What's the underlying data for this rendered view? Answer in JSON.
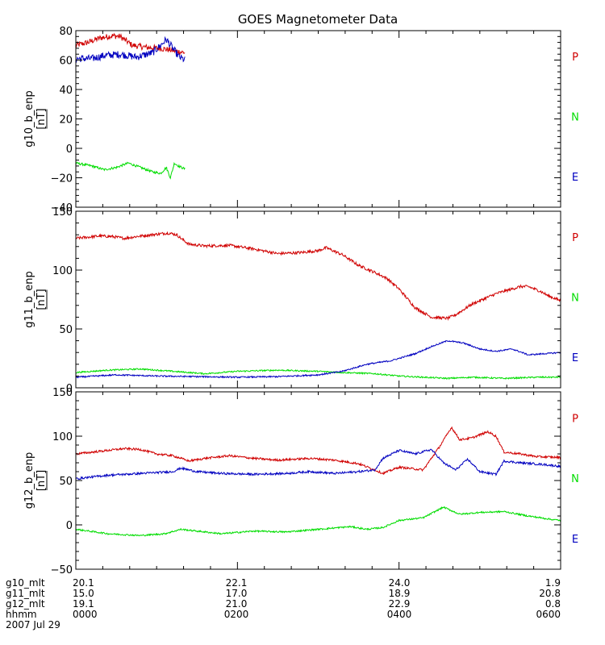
{
  "title": "GOES Magnetometer Data",
  "date_label": "2007 Jul 29",
  "colors": {
    "P": "#d00000",
    "N": "#00dd00",
    "E": "#0000c0",
    "axis": "#000000"
  },
  "legend_labels": [
    "P",
    "N",
    "E"
  ],
  "time_axis": {
    "xlim_hours": [
      0,
      6
    ],
    "tick_hours": [
      0,
      2,
      4,
      6
    ],
    "rows": [
      {
        "label": "g10_mlt",
        "values": [
          "20.1",
          "22.1",
          "24.0",
          "1.9"
        ]
      },
      {
        "label": "g11_mlt",
        "values": [
          "15.0",
          "17.0",
          "18.9",
          "20.8"
        ]
      },
      {
        "label": "g12_mlt",
        "values": [
          "19.1",
          "21.0",
          "22.9",
          "0.8"
        ]
      },
      {
        "label": "hhmm",
        "values": [
          "0000",
          "0200",
          "0400",
          "0600"
        ]
      }
    ]
  },
  "chart_data": [
    {
      "type": "line",
      "ylabel": "g10_b_enp",
      "unit": "[nT]",
      "ylim": [
        -40,
        80
      ],
      "yticks": [
        -40,
        -20,
        0,
        20,
        40,
        60,
        80
      ],
      "ytick_labels": [
        "−40",
        "−20",
        "0",
        "20",
        "40",
        "60",
        "80"
      ],
      "x_end_hours": 1.35,
      "series": [
        {
          "name": "P",
          "noise": 2.0,
          "points": [
            [
              0,
              70
            ],
            [
              0.15,
              72
            ],
            [
              0.3,
              75
            ],
            [
              0.45,
              76.5
            ],
            [
              0.55,
              76
            ],
            [
              0.7,
              70
            ],
            [
              0.9,
              68.5
            ],
            [
              1.05,
              68
            ],
            [
              1.15,
              67
            ],
            [
              1.25,
              66
            ],
            [
              1.35,
              65
            ]
          ]
        },
        {
          "name": "N",
          "noise": 0.8,
          "points": [
            [
              0,
              -10
            ],
            [
              0.2,
              -12
            ],
            [
              0.35,
              -14.5
            ],
            [
              0.5,
              -13
            ],
            [
              0.65,
              -10
            ],
            [
              0.75,
              -12
            ],
            [
              0.95,
              -16
            ],
            [
              1.05,
              -17
            ],
            [
              1.12,
              -13
            ],
            [
              1.17,
              -20
            ],
            [
              1.22,
              -10
            ],
            [
              1.27,
              -12
            ],
            [
              1.35,
              -14
            ]
          ]
        },
        {
          "name": "E",
          "noise": 2.5,
          "points": [
            [
              0,
              61
            ],
            [
              0.2,
              61
            ],
            [
              0.35,
              63
            ],
            [
              0.55,
              64
            ],
            [
              0.75,
              62
            ],
            [
              0.95,
              65
            ],
            [
              1.05,
              70
            ],
            [
              1.12,
              74
            ],
            [
              1.2,
              68
            ],
            [
              1.28,
              62
            ],
            [
              1.35,
              60
            ]
          ]
        }
      ]
    },
    {
      "type": "line",
      "ylabel": "g11_b_enp",
      "unit": "[nT]",
      "ylim": [
        0,
        150
      ],
      "yticks": [
        0,
        50,
        100,
        150
      ],
      "ytick_labels": [
        "0",
        "50",
        "100",
        "150"
      ],
      "x_end_hours": 6,
      "series": [
        {
          "name": "P",
          "noise": 1.2,
          "points": [
            [
              0,
              127
            ],
            [
              0.3,
              129
            ],
            [
              0.45,
              128.5
            ],
            [
              0.6,
              127
            ],
            [
              0.75,
              128.5
            ],
            [
              1.0,
              130.5
            ],
            [
              1.15,
              131.5
            ],
            [
              1.25,
              130
            ],
            [
              1.3,
              127
            ],
            [
              1.4,
              122
            ],
            [
              1.6,
              120.5
            ],
            [
              1.9,
              121
            ],
            [
              2.2,
              118
            ],
            [
              2.5,
              114
            ],
            [
              2.8,
              115
            ],
            [
              3.0,
              116.5
            ],
            [
              3.1,
              119
            ],
            [
              3.3,
              113
            ],
            [
              3.5,
              104
            ],
            [
              3.7,
              98
            ],
            [
              3.85,
              93
            ],
            [
              4.0,
              84
            ],
            [
              4.2,
              68
            ],
            [
              4.4,
              60
            ],
            [
              4.6,
              59
            ],
            [
              4.7,
              62
            ],
            [
              4.9,
              71
            ],
            [
              5.2,
              80
            ],
            [
              5.5,
              86
            ],
            [
              5.6,
              86
            ],
            [
              5.75,
              82
            ],
            [
              5.85,
              78
            ],
            [
              6.0,
              74
            ]
          ]
        },
        {
          "name": "N",
          "noise": 0.6,
          "points": [
            [
              0,
              13
            ],
            [
              0.4,
              15
            ],
            [
              0.8,
              16
            ],
            [
              1.2,
              14
            ],
            [
              1.6,
              12
            ],
            [
              2.0,
              14
            ],
            [
              2.5,
              15
            ],
            [
              3.0,
              14
            ],
            [
              3.3,
              13
            ],
            [
              3.7,
              12
            ],
            [
              4.0,
              10
            ],
            [
              4.3,
              9
            ],
            [
              4.6,
              8
            ],
            [
              4.9,
              9
            ],
            [
              5.3,
              8
            ],
            [
              5.7,
              9
            ],
            [
              6.0,
              9
            ]
          ]
        },
        {
          "name": "E",
          "noise": 0.6,
          "points": [
            [
              0,
              9
            ],
            [
              0.5,
              11
            ],
            [
              1.0,
              10
            ],
            [
              1.5,
              9.5
            ],
            [
              2.0,
              9
            ],
            [
              2.5,
              9.5
            ],
            [
              3.0,
              11
            ],
            [
              3.3,
              14
            ],
            [
              3.6,
              20
            ],
            [
              3.9,
              23
            ],
            [
              4.2,
              29
            ],
            [
              4.4,
              35
            ],
            [
              4.6,
              40
            ],
            [
              4.8,
              38
            ],
            [
              5.0,
              33
            ],
            [
              5.2,
              31
            ],
            [
              5.4,
              33
            ],
            [
              5.6,
              28
            ],
            [
              5.8,
              29
            ],
            [
              6.0,
              30
            ]
          ]
        }
      ]
    },
    {
      "type": "line",
      "ylabel": "g12_b_enp",
      "unit": "[nT]",
      "ylim": [
        -50,
        150
      ],
      "yticks": [
        -50,
        0,
        50,
        100,
        150
      ],
      "ytick_labels": [
        "−50",
        "0",
        "50",
        "100",
        "150"
      ],
      "x_end_hours": 6,
      "series": [
        {
          "name": "P",
          "noise": 1.2,
          "points": [
            [
              0,
              80
            ],
            [
              0.4,
              84
            ],
            [
              0.6,
              86
            ],
            [
              0.8,
              85
            ],
            [
              1.0,
              80
            ],
            [
              1.2,
              78
            ],
            [
              1.4,
              72
            ],
            [
              1.6,
              75
            ],
            [
              1.9,
              78
            ],
            [
              2.2,
              75
            ],
            [
              2.5,
              73
            ],
            [
              2.9,
              75
            ],
            [
              3.2,
              73
            ],
            [
              3.5,
              69
            ],
            [
              3.7,
              62
            ],
            [
              3.8,
              58
            ],
            [
              4.0,
              65
            ],
            [
              4.3,
              62
            ],
            [
              4.5,
              88
            ],
            [
              4.65,
              110
            ],
            [
              4.75,
              96
            ],
            [
              4.9,
              98
            ],
            [
              5.1,
              105
            ],
            [
              5.2,
              100
            ],
            [
              5.3,
              82
            ],
            [
              5.5,
              80
            ],
            [
              5.7,
              77
            ],
            [
              6.0,
              76
            ]
          ]
        },
        {
          "name": "N",
          "noise": 0.9,
          "points": [
            [
              0,
              -5
            ],
            [
              0.4,
              -10
            ],
            [
              0.8,
              -12
            ],
            [
              1.1,
              -10
            ],
            [
              1.3,
              -5
            ],
            [
              1.5,
              -7
            ],
            [
              1.8,
              -10
            ],
            [
              2.2,
              -7
            ],
            [
              2.6,
              -8
            ],
            [
              3.0,
              -5
            ],
            [
              3.4,
              -2
            ],
            [
              3.6,
              -5
            ],
            [
              3.8,
              -3
            ],
            [
              4.0,
              5
            ],
            [
              4.3,
              8
            ],
            [
              4.55,
              20
            ],
            [
              4.75,
              12
            ],
            [
              5.0,
              14
            ],
            [
              5.3,
              15
            ],
            [
              5.6,
              10
            ],
            [
              5.9,
              6
            ],
            [
              6.0,
              5
            ]
          ]
        },
        {
          "name": "E",
          "noise": 1.2,
          "points": [
            [
              0,
              52
            ],
            [
              0.4,
              56
            ],
            [
              0.8,
              58
            ],
            [
              1.2,
              60
            ],
            [
              1.3,
              64
            ],
            [
              1.5,
              60
            ],
            [
              1.8,
              58
            ],
            [
              2.2,
              57
            ],
            [
              2.6,
              58
            ],
            [
              2.9,
              60
            ],
            [
              3.2,
              58
            ],
            [
              3.5,
              60
            ],
            [
              3.7,
              62
            ],
            [
              3.8,
              75
            ],
            [
              4.0,
              84
            ],
            [
              4.2,
              80
            ],
            [
              4.4,
              85
            ],
            [
              4.55,
              70
            ],
            [
              4.7,
              62
            ],
            [
              4.85,
              74
            ],
            [
              5.0,
              60
            ],
            [
              5.2,
              57
            ],
            [
              5.3,
              72
            ],
            [
              5.5,
              70
            ],
            [
              5.8,
              68
            ],
            [
              6.0,
              66
            ]
          ]
        }
      ]
    }
  ]
}
